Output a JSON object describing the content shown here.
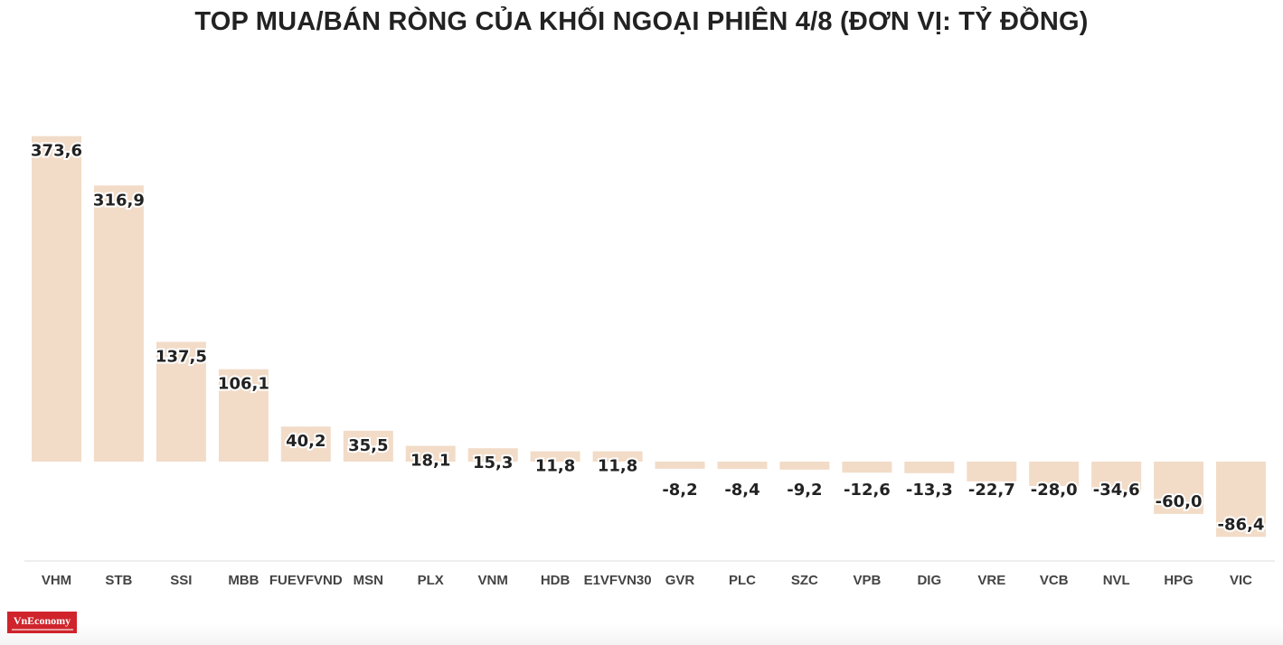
{
  "chart_data": {
    "type": "bar",
    "title": "TOP MUA/BÁN RÒNG CỦA KHỐI NGOẠI PHIÊN 4/8 (ĐƠN VỊ: TỶ ĐỒNG)",
    "categories": [
      "VHM",
      "STB",
      "SSI",
      "MBB",
      "FUEVFVND",
      "MSN",
      "PLX",
      "VNM",
      "HDB",
      "E1VFVN30",
      "GVR",
      "PLC",
      "SZC",
      "VPB",
      "DIG",
      "VRE",
      "VCB",
      "NVL",
      "HPG",
      "VIC"
    ],
    "values": [
      373.6,
      316.9,
      137.5,
      106.1,
      40.2,
      35.5,
      18.1,
      15.3,
      11.8,
      11.8,
      -8.2,
      -8.4,
      -9.2,
      -12.6,
      -13.3,
      -22.7,
      -28.0,
      -34.6,
      -60.0,
      -86.4
    ],
    "value_labels": [
      "373,6",
      "316,9",
      "137,5",
      "106,1",
      "40,2",
      "35,5",
      "18,1",
      "15,3",
      "11,8",
      "11,8",
      "-8,2",
      "-8,4",
      "-9,2",
      "-12,6",
      "-13,3",
      "-22,7",
      "-28,0",
      "-34,6",
      "-60,0",
      "-86,4"
    ],
    "xlabel": "",
    "ylabel": "",
    "ylim": [
      -100,
      373.6
    ],
    "grid": false,
    "legend": "none",
    "bar_color": "#f2dcc8"
  },
  "logo": {
    "text": "VnEconomy",
    "color": "#d0242c"
  }
}
